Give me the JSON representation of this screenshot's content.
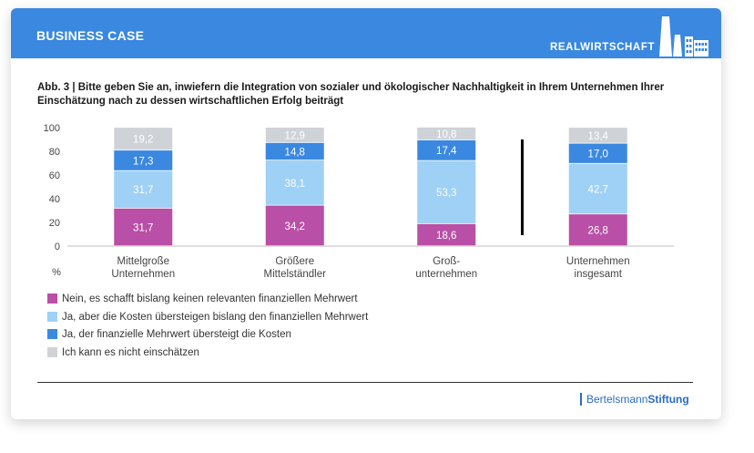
{
  "header": {
    "title": "BUSINESS CASE",
    "brand": "REALWIRTSCHAFT"
  },
  "figure": {
    "title": "Abb. 3  |  Bitte geben Sie an, inwiefern die Integration von sozialer und ökologischer Nachhaltigkeit in Ihrem Unternehmen Ihrer Einschätzung nach zu dessen wirtschaftlichen Erfolg beiträgt"
  },
  "chart_data": {
    "type": "bar",
    "stacked": true,
    "categories": [
      [
        "Mittelgroße",
        "Unternehmen"
      ],
      [
        "Größere",
        "Mittelständler"
      ],
      [
        "Groß-",
        "unternehmen"
      ],
      [
        "Unternehmen",
        "insgesamt"
      ]
    ],
    "series": [
      {
        "name": "Nein, es schafft bislang keinen relevanten finanziellen Mehrwert",
        "color": "#b94fa6",
        "values": [
          31.7,
          34.2,
          18.6,
          26.8
        ],
        "labels": [
          "31,7",
          "34,2",
          "18,6",
          "26,8"
        ]
      },
      {
        "name": "Ja, aber die Kosten übersteigen bislang den finanziellen Mehrwert",
        "color": "#9fd0f5",
        "values": [
          31.7,
          38.1,
          53.3,
          42.7
        ],
        "labels": [
          "31,7",
          "38,1",
          "53,3",
          "42,7"
        ]
      },
      {
        "name": "Ja, der finanzielle Mehrwert übersteigt die Kosten",
        "color": "#3a88e0",
        "values": [
          17.3,
          14.8,
          17.4,
          17.0
        ],
        "labels": [
          "17,3",
          "14,8",
          "17,4",
          "17,0"
        ]
      },
      {
        "name": "Ich kann es nicht einschätzen",
        "color": "#cfd3d8",
        "values": [
          19.2,
          12.9,
          10.8,
          13.4
        ],
        "labels": [
          "19,2",
          "12,9",
          "10,8",
          "13,4"
        ]
      }
    ],
    "yticks": [
      0,
      20,
      40,
      60,
      80,
      100
    ],
    "ylim": [
      0,
      100
    ],
    "ylabel": "%",
    "separator_after_index": 2
  },
  "footer": {
    "brand_part1": "Bertelsmann",
    "brand_part2": "Stiftung"
  }
}
